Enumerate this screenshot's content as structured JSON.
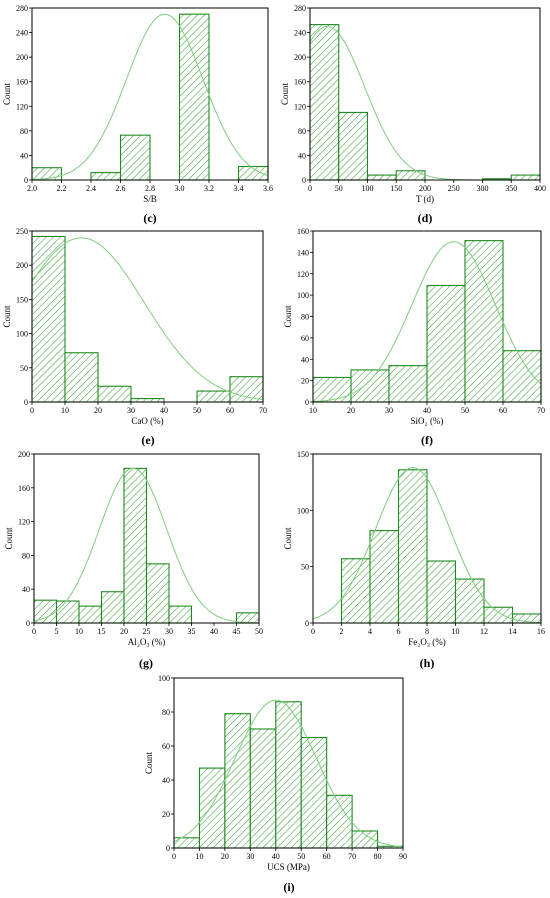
{
  "figure": {
    "colors": {
      "bar_stroke": "#1f8a1f",
      "hatch": "#3aa33a",
      "curve": "#7fcf7f",
      "axis": "#000000"
    }
  },
  "chart_data": [
    {
      "id": "c",
      "type": "bar",
      "subfigure_label": "(c)",
      "xlabel": "S/B",
      "ylabel": "Count",
      "xlim": [
        2.0,
        3.6
      ],
      "ylim": [
        0,
        280
      ],
      "xticks": [
        "2.0",
        "2.2",
        "2.4",
        "2.6",
        "2.8",
        "3.0",
        "3.2",
        "3.4",
        "3.6"
      ],
      "yticks": [
        "0",
        "40",
        "80",
        "120",
        "160",
        "200",
        "240",
        "280"
      ],
      "bins": [
        {
          "x0": 2.0,
          "x1": 2.2,
          "count": 20
        },
        {
          "x0": 2.4,
          "x1": 2.6,
          "count": 12
        },
        {
          "x0": 2.6,
          "x1": 2.8,
          "count": 73
        },
        {
          "x0": 3.0,
          "x1": 3.2,
          "count": 270
        },
        {
          "x0": 3.4,
          "x1": 3.6,
          "count": 22
        }
      ],
      "fit_curve": {
        "peak_x": 2.9,
        "peak_y": 270,
        "sigma": 0.26
      }
    },
    {
      "id": "d",
      "type": "bar",
      "subfigure_label": "(d)",
      "xlabel": "T (d)",
      "ylabel": "Count",
      "xlim": [
        0,
        400
      ],
      "ylim": [
        0,
        280
      ],
      "xticks": [
        "0",
        "50",
        "100",
        "150",
        "200",
        "250",
        "300",
        "350",
        "400"
      ],
      "yticks": [
        "0",
        "40",
        "80",
        "120",
        "160",
        "200",
        "240",
        "280"
      ],
      "bins": [
        {
          "x0": 0,
          "x1": 50,
          "count": 253
        },
        {
          "x0": 50,
          "x1": 100,
          "count": 110
        },
        {
          "x0": 100,
          "x1": 150,
          "count": 8
        },
        {
          "x0": 150,
          "x1": 200,
          "count": 15
        },
        {
          "x0": 200,
          "x1": 250,
          "count": 0
        },
        {
          "x0": 250,
          "x1": 300,
          "count": 0
        },
        {
          "x0": 300,
          "x1": 350,
          "count": 2
        },
        {
          "x0": 350,
          "x1": 400,
          "count": 8
        }
      ],
      "fit_curve": {
        "peak_x": 30,
        "peak_y": 250,
        "sigma": 65
      }
    },
    {
      "id": "e",
      "type": "bar",
      "subfigure_label": "(e)",
      "xlabel": "CaO (%)",
      "ylabel": "Count",
      "xlim": [
        0,
        70
      ],
      "ylim": [
        0,
        250
      ],
      "xticks": [
        "0",
        "10",
        "20",
        "30",
        "40",
        "50",
        "60",
        "70"
      ],
      "yticks": [
        "0",
        "50",
        "100",
        "150",
        "200",
        "250"
      ],
      "bins": [
        {
          "x0": 0,
          "x1": 10,
          "count": 242
        },
        {
          "x0": 10,
          "x1": 20,
          "count": 72
        },
        {
          "x0": 20,
          "x1": 30,
          "count": 23
        },
        {
          "x0": 30,
          "x1": 40,
          "count": 5
        },
        {
          "x0": 40,
          "x1": 50,
          "count": 0
        },
        {
          "x0": 50,
          "x1": 60,
          "count": 16
        },
        {
          "x0": 60,
          "x1": 70,
          "count": 37
        }
      ],
      "fit_curve": {
        "peak_x": 15,
        "peak_y": 240,
        "sigma": 19
      }
    },
    {
      "id": "f",
      "type": "bar",
      "subfigure_label": "(f)",
      "xlabel": "SiO₂ (%)",
      "ylabel": "Count",
      "xlim": [
        10,
        70
      ],
      "ylim": [
        0,
        160
      ],
      "xticks": [
        "10",
        "20",
        "30",
        "40",
        "50",
        "60",
        "70"
      ],
      "yticks": [
        "0",
        "20",
        "40",
        "60",
        "80",
        "100",
        "120",
        "140",
        "160"
      ],
      "bins": [
        {
          "x0": 10,
          "x1": 20,
          "count": 23
        },
        {
          "x0": 20,
          "x1": 30,
          "count": 30
        },
        {
          "x0": 30,
          "x1": 40,
          "count": 34
        },
        {
          "x0": 40,
          "x1": 50,
          "count": 109
        },
        {
          "x0": 50,
          "x1": 60,
          "count": 151
        },
        {
          "x0": 60,
          "x1": 70,
          "count": 48
        }
      ],
      "fit_curve": {
        "peak_x": 47,
        "peak_y": 150,
        "sigma": 11
      }
    },
    {
      "id": "g",
      "type": "bar",
      "subfigure_label": "(g)",
      "xlabel": "Al₂O₃ (%)",
      "ylabel": "Count",
      "xlim": [
        0,
        50
      ],
      "ylim": [
        0,
        200
      ],
      "xticks": [
        "0",
        "5",
        "10",
        "15",
        "20",
        "25",
        "30",
        "35",
        "40",
        "45",
        "50"
      ],
      "yticks": [
        "0",
        "40",
        "80",
        "120",
        "160",
        "200"
      ],
      "bins": [
        {
          "x0": 0,
          "x1": 5,
          "count": 27
        },
        {
          "x0": 5,
          "x1": 10,
          "count": 26
        },
        {
          "x0": 10,
          "x1": 15,
          "count": 20
        },
        {
          "x0": 15,
          "x1": 20,
          "count": 37
        },
        {
          "x0": 20,
          "x1": 25,
          "count": 183
        },
        {
          "x0": 25,
          "x1": 30,
          "count": 70
        },
        {
          "x0": 30,
          "x1": 35,
          "count": 20
        },
        {
          "x0": 35,
          "x1": 40,
          "count": 0
        },
        {
          "x0": 40,
          "x1": 45,
          "count": 0
        },
        {
          "x0": 45,
          "x1": 50,
          "count": 12
        }
      ],
      "fit_curve": {
        "peak_x": 22,
        "peak_y": 183,
        "sigma": 7.5
      }
    },
    {
      "id": "h",
      "type": "bar",
      "subfigure_label": "(h)",
      "xlabel": "Fe₂O₃ (%)",
      "ylabel": "Count",
      "xlim": [
        0,
        16
      ],
      "ylim": [
        0,
        150
      ],
      "xticks": [
        "0",
        "2",
        "4",
        "6",
        "8",
        "10",
        "12",
        "14",
        "16"
      ],
      "yticks": [
        "0",
        "50",
        "100",
        "150"
      ],
      "bins": [
        {
          "x0": 2,
          "x1": 4,
          "count": 57
        },
        {
          "x0": 4,
          "x1": 6,
          "count": 82
        },
        {
          "x0": 6,
          "x1": 8,
          "count": 136
        },
        {
          "x0": 8,
          "x1": 10,
          "count": 55
        },
        {
          "x0": 10,
          "x1": 12,
          "count": 39
        },
        {
          "x0": 12,
          "x1": 14,
          "count": 14
        },
        {
          "x0": 14,
          "x1": 16,
          "count": 8
        }
      ],
      "fit_curve": {
        "peak_x": 7,
        "peak_y": 138,
        "sigma": 2.6
      }
    },
    {
      "id": "i",
      "type": "bar",
      "subfigure_label": "(i)",
      "xlabel": "UCS (MPa)",
      "ylabel": "Count",
      "xlim": [
        0,
        90
      ],
      "ylim": [
        0,
        100
      ],
      "xticks": [
        "0",
        "10",
        "20",
        "30",
        "40",
        "50",
        "60",
        "70",
        "80",
        "90"
      ],
      "yticks": [
        "0",
        "20",
        "40",
        "60",
        "80",
        "100"
      ],
      "bins": [
        {
          "x0": 0,
          "x1": 10,
          "count": 6
        },
        {
          "x0": 10,
          "x1": 20,
          "count": 47
        },
        {
          "x0": 20,
          "x1": 30,
          "count": 79
        },
        {
          "x0": 30,
          "x1": 40,
          "count": 70
        },
        {
          "x0": 40,
          "x1": 50,
          "count": 86
        },
        {
          "x0": 50,
          "x1": 60,
          "count": 65
        },
        {
          "x0": 60,
          "x1": 70,
          "count": 31
        },
        {
          "x0": 70,
          "x1": 80,
          "count": 10
        },
        {
          "x0": 80,
          "x1": 90,
          "count": 1
        }
      ],
      "fit_curve": {
        "peak_x": 40,
        "peak_y": 87,
        "sigma": 16
      }
    }
  ]
}
